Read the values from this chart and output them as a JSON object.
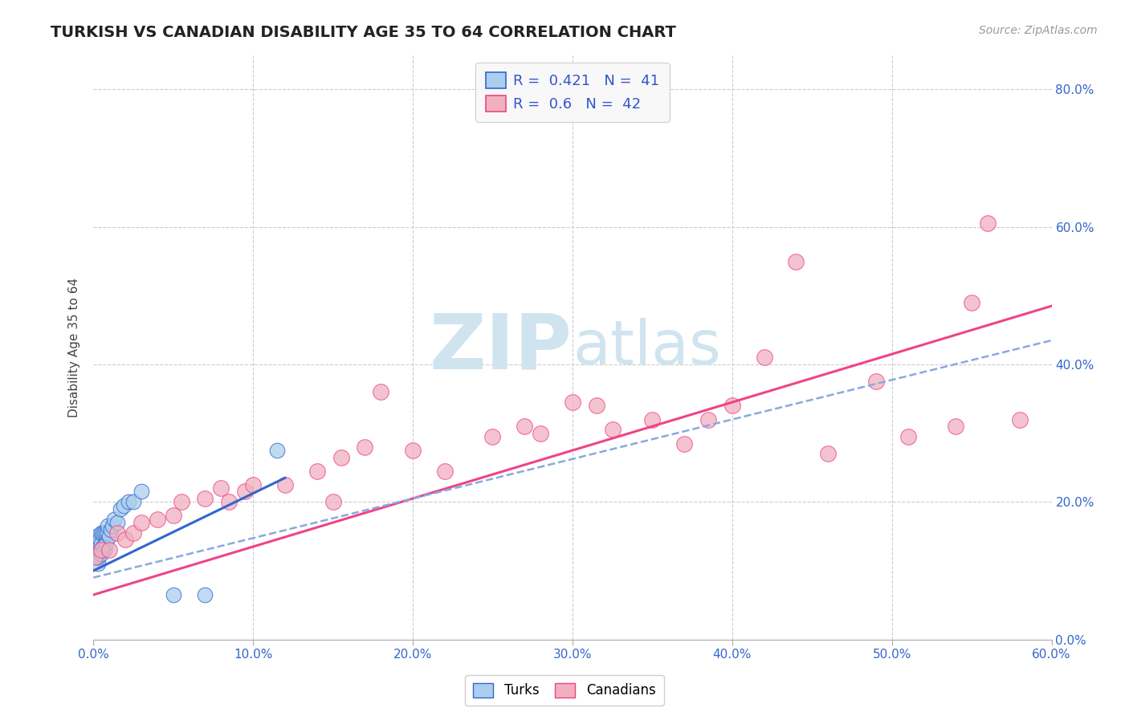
{
  "title": "TURKISH VS CANADIAN DISABILITY AGE 35 TO 64 CORRELATION CHART",
  "source_text": "Source: ZipAtlas.com",
  "ylabel": "Disability Age 35 to 64",
  "xlim": [
    0.0,
    0.6
  ],
  "ylim": [
    0.0,
    0.85
  ],
  "xticks": [
    0.0,
    0.1,
    0.2,
    0.3,
    0.4,
    0.5,
    0.6
  ],
  "yticks": [
    0.0,
    0.2,
    0.4,
    0.6,
    0.8
  ],
  "xticklabels": [
    "0.0%",
    "10.0%",
    "20.0%",
    "30.0%",
    "40.0%",
    "50.0%",
    "60.0%"
  ],
  "yticklabels": [
    "0.0%",
    "20.0%",
    "40.0%",
    "60.0%",
    "80.0%"
  ],
  "turks_R": 0.421,
  "turks_N": 41,
  "canadians_R": 0.6,
  "canadians_N": 42,
  "turks_color": "#aacfee",
  "canadians_color": "#f0b0c0",
  "turks_line_color": "#3366cc",
  "canadians_line_color": "#ee4488",
  "turks_line_dash_color": "#88aadd",
  "background_color": "#ffffff",
  "grid_color": "#cccccc",
  "watermark_color": "#d0e4f0",
  "turks_x": [
    0.001,
    0.001,
    0.001,
    0.001,
    0.002,
    0.002,
    0.002,
    0.002,
    0.002,
    0.003,
    0.003,
    0.003,
    0.003,
    0.003,
    0.004,
    0.004,
    0.004,
    0.005,
    0.005,
    0.005,
    0.006,
    0.006,
    0.007,
    0.007,
    0.008,
    0.008,
    0.009,
    0.009,
    0.01,
    0.011,
    0.012,
    0.013,
    0.015,
    0.017,
    0.019,
    0.022,
    0.025,
    0.03,
    0.05,
    0.07,
    0.115
  ],
  "turks_y": [
    0.125,
    0.13,
    0.135,
    0.14,
    0.12,
    0.13,
    0.14,
    0.145,
    0.15,
    0.11,
    0.12,
    0.13,
    0.135,
    0.14,
    0.13,
    0.14,
    0.145,
    0.125,
    0.14,
    0.155,
    0.135,
    0.155,
    0.13,
    0.155,
    0.14,
    0.155,
    0.155,
    0.165,
    0.15,
    0.16,
    0.165,
    0.175,
    0.17,
    0.19,
    0.195,
    0.2,
    0.2,
    0.215,
    0.065,
    0.065,
    0.275
  ],
  "canadians_x": [
    0.001,
    0.005,
    0.01,
    0.015,
    0.02,
    0.025,
    0.03,
    0.04,
    0.05,
    0.055,
    0.07,
    0.08,
    0.085,
    0.095,
    0.1,
    0.12,
    0.14,
    0.15,
    0.155,
    0.17,
    0.18,
    0.2,
    0.22,
    0.25,
    0.27,
    0.28,
    0.3,
    0.315,
    0.325,
    0.35,
    0.37,
    0.385,
    0.4,
    0.42,
    0.44,
    0.46,
    0.49,
    0.51,
    0.54,
    0.55,
    0.56,
    0.58
  ],
  "canadians_y": [
    0.12,
    0.13,
    0.13,
    0.155,
    0.145,
    0.155,
    0.17,
    0.175,
    0.18,
    0.2,
    0.205,
    0.22,
    0.2,
    0.215,
    0.225,
    0.225,
    0.245,
    0.2,
    0.265,
    0.28,
    0.36,
    0.275,
    0.245,
    0.295,
    0.31,
    0.3,
    0.345,
    0.34,
    0.305,
    0.32,
    0.285,
    0.32,
    0.34,
    0.41,
    0.55,
    0.27,
    0.375,
    0.295,
    0.31,
    0.49,
    0.605,
    0.32
  ],
  "turks_line_x": [
    0.0,
    0.12
  ],
  "turks_line_y": [
    0.1,
    0.235
  ],
  "canadians_line_x": [
    0.0,
    0.6
  ],
  "canadians_line_y": [
    0.065,
    0.485
  ],
  "turks_dash_line_x": [
    0.0,
    0.6
  ],
  "turks_dash_line_y": [
    0.09,
    0.435
  ]
}
